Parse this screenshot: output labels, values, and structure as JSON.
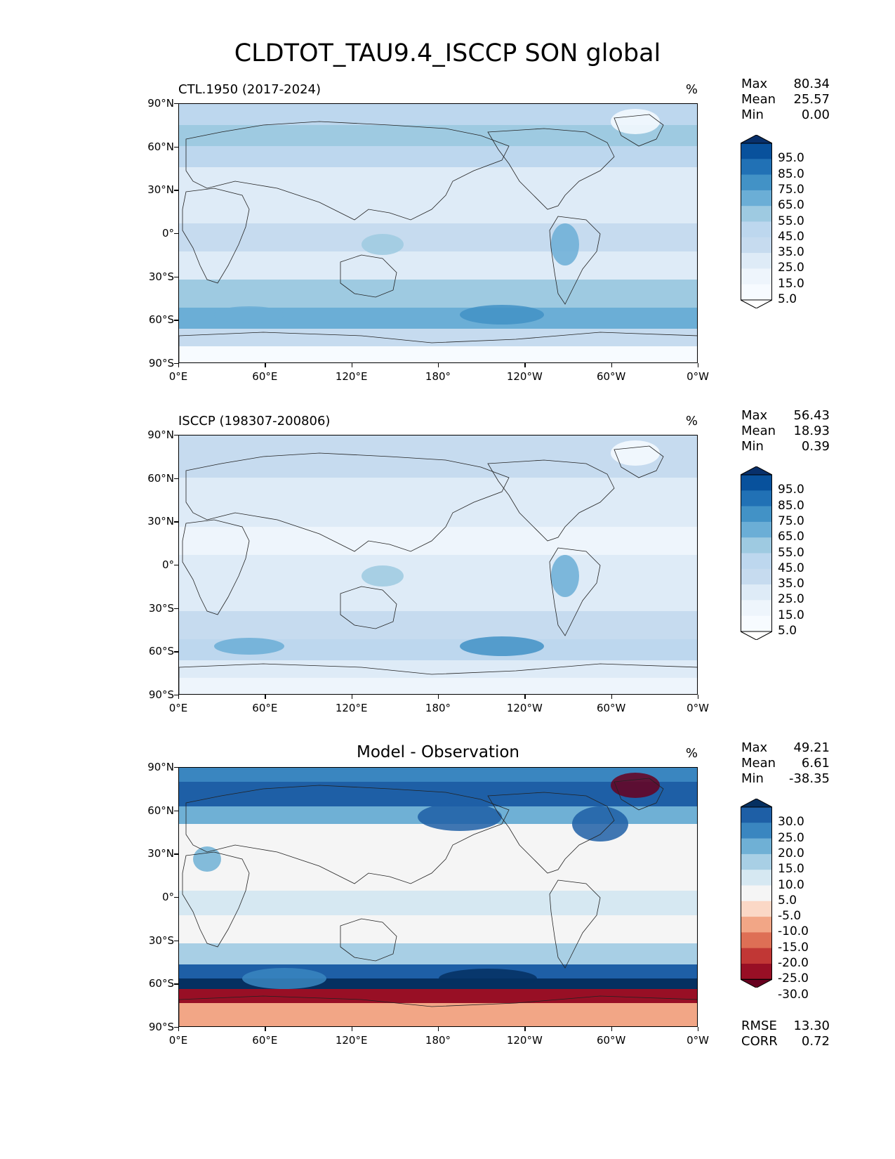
{
  "figure": {
    "title": "CLDTOT_TAU9.4_ISCCP SON global"
  },
  "axes": {
    "lat_ticks": [
      "90°N",
      "60°N",
      "30°N",
      "0°",
      "30°S",
      "60°S",
      "90°S"
    ],
    "lon_ticks": [
      "0°E",
      "60°E",
      "120°E",
      "180°",
      "120°W",
      "60°W",
      "0°W"
    ]
  },
  "panels": [
    {
      "title_left": "CTL.1950 (2017-2024)",
      "title_center": "",
      "units": "%",
      "stats": [
        {
          "label": "Max",
          "value": "80.34"
        },
        {
          "label": "Mean",
          "value": "25.57"
        },
        {
          "label": "Min",
          "value": "0.00"
        }
      ],
      "colorbar": {
        "labels": [
          "95.0",
          "85.0",
          "75.0",
          "65.0",
          "55.0",
          "45.0",
          "35.0",
          "25.0",
          "15.0",
          "5.0"
        ],
        "colors": [
          "#08306b",
          "#08519c",
          "#2171b5",
          "#4292c6",
          "#6baed6",
          "#9ecae1",
          "#bdd7ee",
          "#c6dbef",
          "#deebf7",
          "#eef5fc",
          "#f7fbff",
          "#ffffff"
        ]
      },
      "footer_stats": []
    },
    {
      "title_left": "ISCCP (198307-200806)",
      "title_center": "",
      "units": "%",
      "stats": [
        {
          "label": "Max",
          "value": "56.43"
        },
        {
          "label": "Mean",
          "value": "18.93"
        },
        {
          "label": "Min",
          "value": "0.39"
        }
      ],
      "colorbar": {
        "labels": [
          "95.0",
          "85.0",
          "75.0",
          "65.0",
          "55.0",
          "45.0",
          "35.0",
          "25.0",
          "15.0",
          "5.0"
        ],
        "colors": [
          "#08306b",
          "#08519c",
          "#2171b5",
          "#4292c6",
          "#6baed6",
          "#9ecae1",
          "#bdd7ee",
          "#c6dbef",
          "#deebf7",
          "#eef5fc",
          "#f7fbff",
          "#ffffff"
        ]
      },
      "footer_stats": []
    },
    {
      "title_left": "",
      "title_center": "Model - Observation",
      "units": "%",
      "stats": [
        {
          "label": "Max",
          "value": "49.21"
        },
        {
          "label": "Mean",
          "value": "6.61"
        },
        {
          "label": "Min",
          "value": "-38.35"
        }
      ],
      "colorbar": {
        "labels": [
          "30.0",
          "25.0",
          "20.0",
          "15.0",
          "10.0",
          "5.0",
          "-5.0",
          "-10.0",
          "-15.0",
          "-20.0",
          "-25.0",
          "-30.0"
        ],
        "colors": [
          "#053061",
          "#1e5fa6",
          "#3a86c0",
          "#6fb0d5",
          "#a8cfe5",
          "#d6e8f2",
          "#f5f5f5",
          "#fbd8c6",
          "#f2a686",
          "#de6f55",
          "#c13735",
          "#980f25",
          "#67001f"
        ]
      },
      "footer_stats": [
        {
          "label": "RMSE",
          "value": "13.30"
        },
        {
          "label": "CORR",
          "value": "0.72"
        }
      ]
    }
  ]
}
